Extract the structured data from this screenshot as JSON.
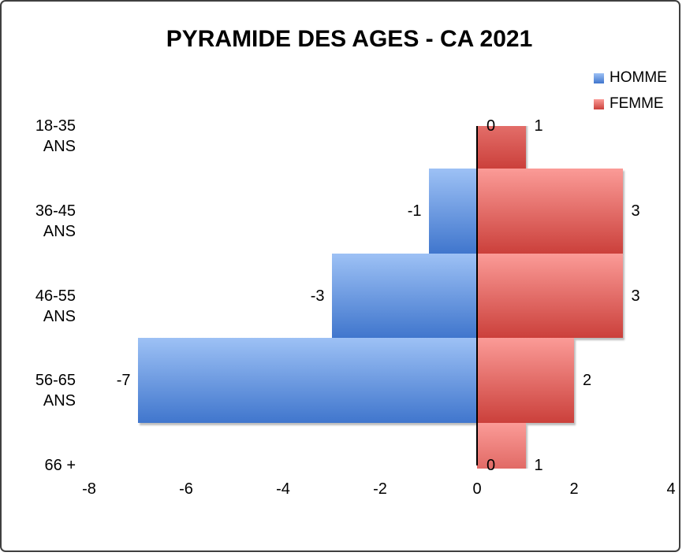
{
  "chart_data": {
    "type": "bar",
    "orientation": "horizontal-pyramid",
    "title": "PYRAMIDE DES AGES - CA 2021",
    "categories": [
      "18-35 ANS",
      "36-45 ANS",
      "46-55 ANS",
      "56-65 ANS",
      "66 +"
    ],
    "series": [
      {
        "name": "HOMME",
        "values": [
          0,
          -1,
          -3,
          -7,
          0
        ],
        "data_labels": [
          "0",
          "-1",
          "-3",
          "-7",
          "0"
        ],
        "color_top": "#9dc1f5",
        "color_bottom": "#4076cd"
      },
      {
        "name": "FEMME",
        "values": [
          1,
          3,
          3,
          2,
          1
        ],
        "data_labels": [
          "1",
          "3",
          "3",
          "2",
          "1"
        ],
        "color_top": "#fb9b97",
        "color_bottom": "#cb403b"
      }
    ],
    "xlim": [
      -8,
      4
    ],
    "x_ticks": [
      "-8",
      "-6",
      "-4",
      "-2",
      "0",
      "2",
      "4"
    ],
    "x_tick_values": [
      -8,
      -6,
      -4,
      -2,
      0,
      2,
      4
    ],
    "grid": false,
    "legend_position": "top-right",
    "axis_line_color": "#000000",
    "border_color": "#3f3f3f",
    "background_color": "#ffffff"
  }
}
